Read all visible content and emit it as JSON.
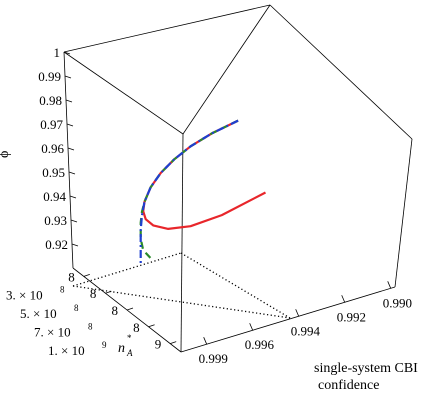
{
  "chart_data": {
    "type": "line-3d",
    "axes": {
      "z": {
        "label": "ϕ",
        "range": [
          0.91,
          1.0
        ],
        "ticks": [
          "1",
          "0.99",
          "0.98",
          "0.97",
          "0.96",
          "0.95",
          "0.94",
          "0.93",
          "0.92"
        ]
      },
      "n": {
        "label": "n",
        "label_sub": "A",
        "label_sup": "*",
        "ticks": [
          {
            "mantissa": "3. × 10",
            "exponent": "8"
          },
          {
            "mantissa": "5. × 10",
            "exponent": "8"
          },
          {
            "mantissa": "7. × 10",
            "exponent": "8"
          },
          {
            "mantissa": "1. × 10",
            "exponent": "9"
          }
        ],
        "ticks_unlabeled": [
          "8",
          "8",
          "8",
          "8",
          "9"
        ]
      },
      "c": {
        "label_lines": [
          "single-system CBI",
          "confidence"
        ],
        "ticks": [
          "0.999",
          "0.996",
          "0.994",
          "0.992",
          "0.990"
        ]
      }
    },
    "series": [
      {
        "style": "solid",
        "color": "#e8262b",
        "points": [
          [
            0.9902,
            0.972
          ],
          [
            0.9923,
            0.97
          ],
          [
            0.994,
            0.967
          ],
          [
            0.9953,
            0.963
          ],
          [
            0.9964,
            0.958
          ],
          [
            0.9972,
            0.952
          ],
          [
            0.9977,
            0.945
          ],
          [
            0.9978,
            0.94
          ],
          [
            0.9976,
            0.935
          ],
          [
            0.997,
            0.93
          ],
          [
            0.9958,
            0.925
          ],
          [
            0.994,
            0.922
          ],
          [
            0.9915,
            0.922
          ],
          [
            0.988,
            0.926
          ]
        ]
      },
      {
        "style": "dashed",
        "color": "#2b8a2b",
        "points": [
          [
            0.9902,
            0.972
          ],
          [
            0.9923,
            0.97
          ],
          [
            0.994,
            0.967
          ],
          [
            0.9953,
            0.963
          ],
          [
            0.9964,
            0.958
          ],
          [
            0.9972,
            0.952
          ],
          [
            0.9977,
            0.945
          ],
          [
            0.9979,
            0.94
          ],
          [
            0.998,
            0.934
          ],
          [
            0.998,
            0.925
          ],
          [
            0.9978,
            0.918
          ],
          [
            0.9972,
            0.912
          ]
        ]
      },
      {
        "style": "dash-dot",
        "color": "#1f3fd0",
        "points": [
          [
            0.9902,
            0.972
          ],
          [
            0.9923,
            0.97
          ],
          [
            0.994,
            0.967
          ],
          [
            0.9953,
            0.963
          ],
          [
            0.9964,
            0.958
          ],
          [
            0.9972,
            0.952
          ],
          [
            0.9977,
            0.945
          ],
          [
            0.9979,
            0.938
          ],
          [
            0.998,
            0.93
          ],
          [
            0.998,
            0.92
          ],
          [
            0.998,
            0.91
          ]
        ]
      }
    ],
    "grid": false,
    "legend": "none"
  }
}
